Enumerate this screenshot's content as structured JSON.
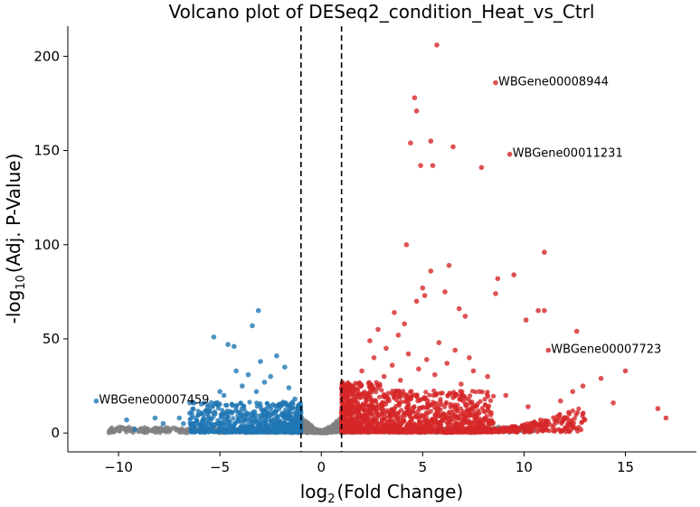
{
  "chart_data": {
    "type": "scatter",
    "title": "Volcano plot of DESeq2_condition_Heat_vs_Ctrl",
    "xlabel": {
      "prefix": "log",
      "sub": "2",
      "suffix": "(Fold Change)"
    },
    "ylabel": {
      "prefix": "-log",
      "sub": "10",
      "suffix": "(Adj. P-Value)"
    },
    "xlim": [
      -12.5,
      18.5
    ],
    "ylim": [
      -10,
      216
    ],
    "xticks": [
      -10,
      -5,
      0,
      5,
      10,
      15
    ],
    "yticks": [
      0,
      50,
      100,
      150,
      200
    ],
    "xtick_labels": [
      "−10",
      "−5",
      "0",
      "5",
      "10",
      "15"
    ],
    "ytick_labels": [
      "0",
      "50",
      "100",
      "150",
      "200"
    ],
    "thresholds": {
      "log2fc": [
        -1,
        1
      ]
    },
    "colors": {
      "up": "#d62728",
      "down": "#1f77b4",
      "ns": "#808080",
      "threshold": "#000000"
    },
    "series": [
      {
        "points": [
          [
            5.7,
            206
          ],
          [
            8.6,
            186
          ],
          [
            4.6,
            178
          ],
          [
            4.7,
            171
          ],
          [
            4.4,
            154
          ],
          [
            5.4,
            155
          ],
          [
            6.5,
            152
          ],
          [
            4.9,
            142
          ],
          [
            5.5,
            142
          ],
          [
            7.9,
            141
          ],
          [
            9.3,
            148
          ],
          [
            4.2,
            100
          ],
          [
            11.0,
            96
          ],
          [
            5.4,
            86
          ],
          [
            6.3,
            89
          ],
          [
            9.5,
            84
          ],
          [
            8.7,
            82
          ],
          [
            5.0,
            77
          ],
          [
            6.1,
            75
          ],
          [
            8.6,
            74
          ],
          [
            5.1,
            73
          ],
          [
            3.6,
            64
          ],
          [
            4.7,
            70
          ],
          [
            6.8,
            66
          ],
          [
            10.7,
            65
          ],
          [
            11.0,
            65
          ],
          [
            10.1,
            60
          ],
          [
            7.1,
            62
          ],
          [
            12.6,
            54
          ],
          [
            11.2,
            44
          ],
          [
            15.0,
            33
          ],
          [
            16.6,
            13
          ],
          [
            17.0,
            8
          ],
          [
            14.4,
            16
          ],
          [
            13.8,
            29
          ],
          [
            12.9,
            25
          ],
          [
            12.4,
            22
          ],
          [
            11.8,
            17
          ],
          [
            12.2,
            11
          ],
          [
            13.0,
            7
          ],
          [
            12.7,
            3
          ],
          [
            1.5,
            25
          ],
          [
            2.0,
            33
          ],
          [
            2.6,
            40
          ],
          [
            3.2,
            45
          ],
          [
            3.8,
            52
          ],
          [
            4.1,
            58
          ],
          [
            2.4,
            49
          ],
          [
            2.8,
            55
          ],
          [
            3.5,
            36
          ],
          [
            5.8,
            48
          ],
          [
            6.6,
            44
          ],
          [
            7.3,
            40
          ],
          [
            8.2,
            30
          ],
          [
            9.1,
            20
          ],
          [
            10.2,
            14
          ],
          [
            3.1,
            30
          ],
          [
            3.9,
            28
          ],
          [
            4.8,
            34
          ],
          [
            5.6,
            31
          ],
          [
            6.9,
            26
          ],
          [
            7.8,
            22
          ],
          [
            1.3,
            15
          ],
          [
            1.8,
            12
          ],
          [
            2.2,
            20
          ],
          [
            4.3,
            42
          ],
          [
            5.2,
            39
          ],
          [
            6.2,
            37
          ],
          [
            7.5,
            33
          ]
        ]
      },
      {
        "points": [
          [
            -11.1,
            17
          ],
          [
            -5.3,
            51
          ],
          [
            -4.6,
            47
          ],
          [
            -4.3,
            46
          ],
          [
            -3.1,
            65
          ],
          [
            -3.4,
            57
          ],
          [
            -3.0,
            38
          ],
          [
            -2.2,
            41
          ],
          [
            -3.6,
            31
          ],
          [
            -3.9,
            25
          ],
          [
            -4.8,
            20
          ],
          [
            -5.6,
            14
          ],
          [
            -6.4,
            11
          ],
          [
            -7.0,
            8
          ],
          [
            -7.8,
            5
          ],
          [
            -8.2,
            8
          ],
          [
            -9.2,
            2
          ],
          [
            -9.6,
            7
          ],
          [
            -6.8,
            5
          ],
          [
            -2.5,
            30
          ],
          [
            -1.6,
            24
          ],
          [
            -1.3,
            18
          ],
          [
            -2.8,
            27
          ],
          [
            -4.2,
            33
          ],
          [
            -5.0,
            22
          ],
          [
            -1.8,
            35
          ],
          [
            -3.2,
            22
          ],
          [
            -2.0,
            15
          ]
        ]
      }
    ],
    "annotations": [
      {
        "text": "WBGene00008944",
        "x": 8.6,
        "y": 186
      },
      {
        "text": "WBGene00011231",
        "x": 9.3,
        "y": 148
      },
      {
        "text": "WBGene00007723",
        "x": 11.2,
        "y": 44
      },
      {
        "text": "WBGene00007459",
        "x": -11.1,
        "y": 17
      }
    ]
  }
}
